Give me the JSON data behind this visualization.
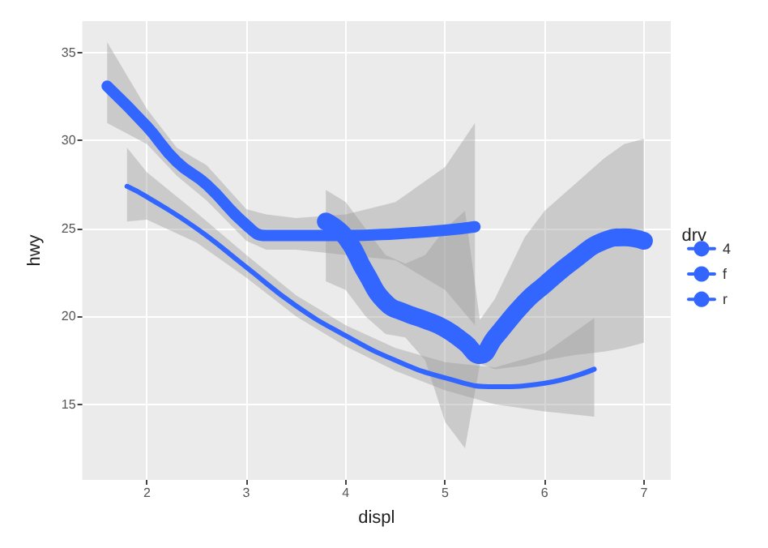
{
  "chart_data": {
    "type": "line",
    "xlabel": "displ",
    "ylabel": "hwy",
    "legend_title": "drv",
    "legend": "right",
    "grid": true,
    "marker": "none",
    "line_style": "solid",
    "xlim": [
      1.35,
      7.27
    ],
    "ylim": [
      10.7,
      36.8
    ],
    "xticks": [
      2,
      3,
      4,
      5,
      6,
      7
    ],
    "yticks": [
      15,
      20,
      25,
      30,
      35
    ],
    "series": [
      {
        "name": "4",
        "color": "#3366ff",
        "x": [
          1.8,
          2,
          2.5,
          3,
          3.5,
          4,
          4.5,
          5,
          5.5,
          6,
          6.5
        ],
        "values": [
          27.4,
          26.8,
          25.0,
          22.8,
          20.6,
          18.9,
          17.5,
          16.5,
          16.0,
          16.2,
          17.0
        ],
        "lower": [
          25.4,
          25.5,
          24.2,
          22.2,
          20.0,
          18.3,
          16.9,
          15.8,
          15.0,
          14.6,
          14.3
        ],
        "upper": [
          29.6,
          28.2,
          25.9,
          23.5,
          21.2,
          19.5,
          18.2,
          17.4,
          17.1,
          17.9,
          19.9
        ]
      },
      {
        "name": "f",
        "color": "#3366ff",
        "x": [
          1.6,
          2,
          2.3,
          2.6,
          3,
          3.2,
          3.5,
          4,
          4.5,
          5,
          5.3
        ],
        "values": [
          33.1,
          30.8,
          28.8,
          27.5,
          25.2,
          24.6,
          24.6,
          24.6,
          24.7,
          24.9,
          25.1
        ],
        "lower": [
          31.0,
          29.8,
          28.0,
          26.6,
          24.3,
          23.8,
          23.8,
          23.5,
          23.2,
          21.5,
          19.5
        ],
        "upper": [
          35.6,
          31.8,
          29.6,
          28.6,
          26.1,
          25.8,
          25.6,
          25.8,
          26.5,
          28.5,
          31.0
        ]
      },
      {
        "name": "r",
        "color": "#3366ff",
        "x": [
          3.8,
          4,
          4.2,
          4.4,
          4.6,
          4.8,
          5,
          5.2,
          5.35,
          5.5,
          5.8,
          6,
          6.3,
          6.6,
          6.8,
          7
        ],
        "values": [
          25.4,
          24.5,
          22.5,
          20.8,
          20.2,
          19.8,
          19.3,
          18.5,
          17.8,
          18.8,
          20.8,
          21.8,
          23.2,
          24.3,
          24.5,
          24.3
        ],
        "lower": [
          22.0,
          21.5,
          20.0,
          19.0,
          18.8,
          17.5,
          14.0,
          12.5,
          17.3,
          17.0,
          17.2,
          17.5,
          17.8,
          18.0,
          18.2,
          18.5
        ],
        "upper": [
          27.2,
          26.5,
          25.0,
          23.5,
          23.0,
          23.5,
          25.0,
          26.0,
          19.8,
          21.0,
          24.5,
          26.0,
          27.5,
          29.0,
          29.8,
          30.1
        ]
      }
    ]
  }
}
